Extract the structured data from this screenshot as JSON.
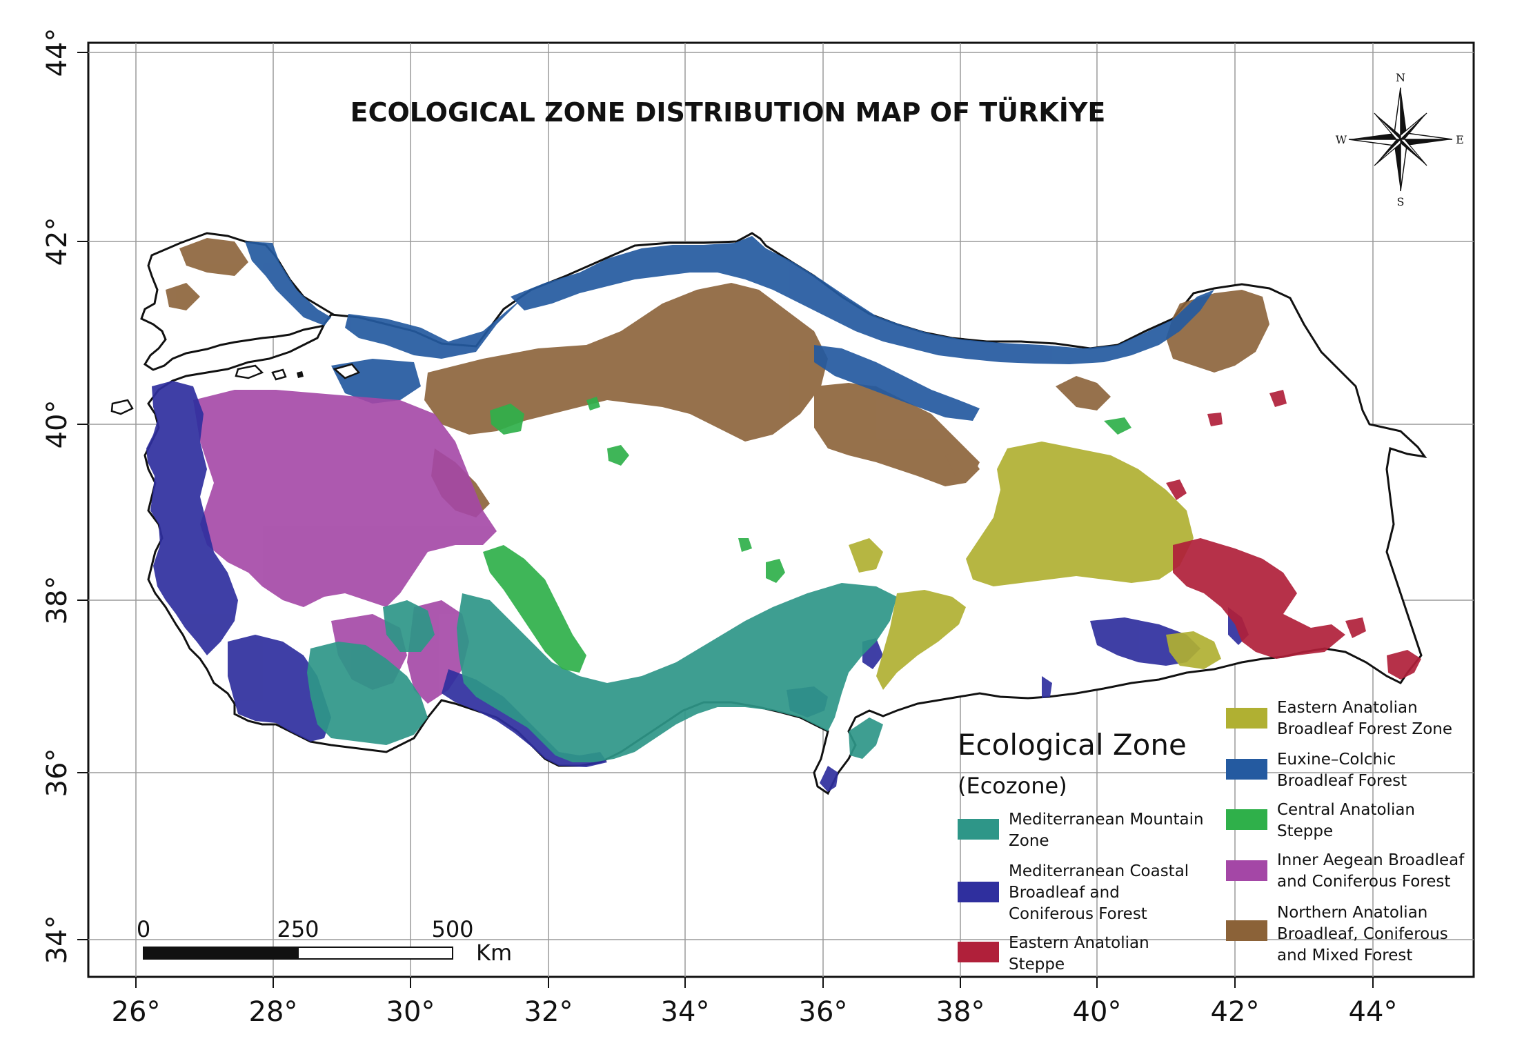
{
  "title": "ECOLOGICAL ZONE DISTRIBUTION MAP OF TÜRKİYE",
  "axes": {
    "x_ticks": [
      "26°",
      "28°",
      "30°",
      "32°",
      "34°",
      "36°",
      "38°",
      "40°",
      "42°",
      "44°"
    ],
    "y_ticks": [
      "44°",
      "42°",
      "40°",
      "38°",
      "36°",
      "34°"
    ]
  },
  "compass": {
    "n": "N",
    "s": "S",
    "e": "E",
    "w": "W"
  },
  "scale_bar": {
    "labels": [
      "0",
      "250",
      "500"
    ],
    "unit": "Km"
  },
  "legend": {
    "title": "Ecological Zone",
    "subtitle": "(Ecozone)",
    "items": [
      {
        "lines": [
          "Mediterranean Mountain",
          "Zone"
        ],
        "color": "#2e9688"
      },
      {
        "lines": [
          "Mediterranean Coastal",
          "Broadleaf and",
          "Coniferous Forest"
        ],
        "color": "#2f2f9e"
      },
      {
        "lines": [
          "Eastern Anatolian",
          "Steppe"
        ],
        "color": "#b0203a"
      },
      {
        "lines": [
          "Eastern Anatolian",
          "Broadleaf Forest Zone"
        ],
        "color": "#b0b032"
      },
      {
        "lines": [
          "Euxine–Colchic",
          "Broadleaf Forest"
        ],
        "color": "#245aa0"
      },
      {
        "lines": [
          "Central Anatolian",
          "Steppe"
        ],
        "color": "#2fb04a"
      },
      {
        "lines": [
          "Inner Aegean Broadleaf",
          "and Coniferous Forest"
        ],
        "color": "#a447a6"
      },
      {
        "lines": [
          "Northern Anatolian",
          "Broadleaf, Coniferous",
          "and Mixed Forest"
        ],
        "color": "#8b6238"
      }
    ]
  }
}
